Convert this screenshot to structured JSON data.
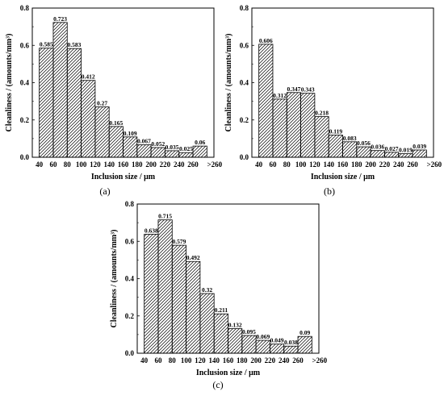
{
  "chart_data": [
    {
      "type": "bar",
      "panel_label": "(a)",
      "xlabel": "Inclusion size / μm",
      "ylabel": "Cleanliness / (amounts/mm³)",
      "ylim": [
        0,
        0.8
      ],
      "yticks": [
        "0.0",
        "0.2",
        "0.4",
        "0.6",
        "0.8"
      ],
      "xticks": [
        "40",
        "60",
        "80",
        "100",
        "120",
        "140",
        "160",
        "180",
        "200",
        "220",
        "240",
        "260",
        ">260"
      ],
      "values": [
        0.585,
        0.723,
        0.583,
        0.412,
        0.27,
        0.165,
        0.109,
        0.067,
        0.052,
        0.035,
        0.025,
        0.06
      ],
      "value_labels": [
        "0.585",
        "0.723",
        "0.583",
        "0.412",
        "0.27",
        "0.165",
        "0.109",
        "0.067",
        "0.052",
        "0.035",
        "0.025",
        "0.06"
      ],
      "bar_fill": "hatched"
    },
    {
      "type": "bar",
      "panel_label": "(b)",
      "xlabel": "Inclusion size / μm",
      "ylabel": "Cleanliness / (amounts/mm³)",
      "ylim": [
        0,
        0.8
      ],
      "yticks": [
        "0.0",
        "0.2",
        "0.4",
        "0.6",
        "0.8"
      ],
      "xticks": [
        "40",
        "60",
        "80",
        "100",
        "120",
        "140",
        "160",
        "180",
        "200",
        "220",
        "240",
        "260",
        ">260"
      ],
      "values": [
        0.606,
        0.312,
        0.347,
        0.343,
        0.218,
        0.119,
        0.083,
        0.056,
        0.036,
        0.027,
        0.019,
        0.039
      ],
      "value_labels": [
        "0.606",
        "0.312",
        "0.347",
        "0.343",
        "0.218",
        "0.119",
        "0.083",
        "0.056",
        "0.036",
        "0.027",
        "0.019",
        "0.039"
      ],
      "bar_fill": "hatched"
    },
    {
      "type": "bar",
      "panel_label": "(c)",
      "xlabel": "Inclusion size / μm",
      "ylabel": "Cleanliness / (amounts/mm³)",
      "ylim": [
        0,
        0.8
      ],
      "yticks": [
        "0.0",
        "0.2",
        "0.4",
        "0.6",
        "0.8"
      ],
      "xticks": [
        "40",
        "60",
        "80",
        "100",
        "120",
        "140",
        "160",
        "180",
        "200",
        "220",
        "240",
        "260",
        ">260"
      ],
      "values": [
        0.638,
        0.715,
        0.579,
        0.492,
        0.32,
        0.211,
        0.132,
        0.095,
        0.069,
        0.049,
        0.038,
        0.09
      ],
      "value_labels": [
        "0.638",
        "0.715",
        "0.579",
        "0.492",
        "0.32",
        "0.211",
        "0.132",
        "0.095",
        "0.069",
        "0.049",
        "0.038",
        "0.09"
      ],
      "bar_fill": "hatched"
    }
  ]
}
